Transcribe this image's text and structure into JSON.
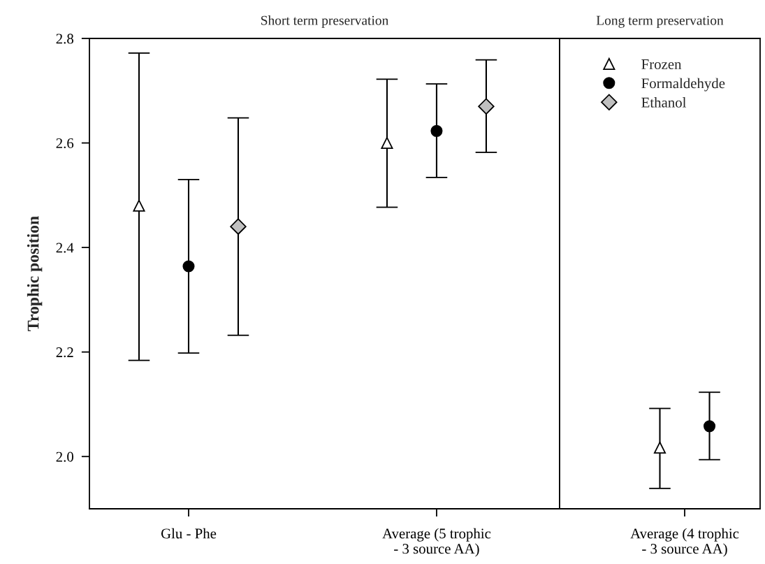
{
  "chart_data": [
    {
      "type": "scatter",
      "title": "Short term preservation",
      "ylabel": "Trophic position",
      "categories": [
        "Glu - Phe",
        "Average (5 trophic\n- 3 source AA)"
      ],
      "ylim": [
        1.9,
        2.8
      ],
      "yticks": [
        {
          "value": 2.0,
          "label": "2.0"
        },
        2.2,
        2.4,
        2.6,
        2.8
      ],
      "tick_labels": "xy",
      "series": [
        {
          "color": "#ffffff",
          "marker": "triangle",
          "values": [
            2.48,
            2.6
          ],
          "errors": [
            [
              2.184,
              2.772
            ],
            [
              2.477,
              2.722
            ]
          ]
        },
        {
          "color": "#000000",
          "marker": "circle",
          "values": [
            2.364,
            2.623
          ],
          "errors": [
            [
              2.198,
              2.53
            ],
            [
              2.534,
              2.713
            ]
          ]
        },
        {
          "color": "#c0c0c0",
          "marker": "diamond",
          "values": [
            2.44,
            2.67
          ],
          "errors": [
            [
              2.232,
              2.648
            ],
            [
              2.582,
              2.759
            ]
          ]
        }
      ]
    },
    {
      "type": "scatter",
      "title": "Long term preservation",
      "categories": [
        "Average (4 trophic\n- 3 source AA)"
      ],
      "ylim": [
        1.9,
        2.8
      ],
      "tick_labels": "x",
      "legend": "top",
      "series": [
        {
          "name": "Frozen",
          "color": "#ffffff",
          "marker": "triangle",
          "values": [
            2.017
          ],
          "errors": [
            [
              1.939,
              2.092
            ]
          ]
        },
        {
          "name": "Formaldehyde",
          "color": "#000000",
          "marker": "circle",
          "values": [
            2.058
          ],
          "errors": [
            [
              1.994,
              2.123
            ]
          ]
        },
        {
          "name": "Ethanol",
          "color": "#c0c0c0",
          "marker": "diamond",
          "values": [
            null
          ],
          "errors": [
            null
          ]
        }
      ]
    }
  ]
}
